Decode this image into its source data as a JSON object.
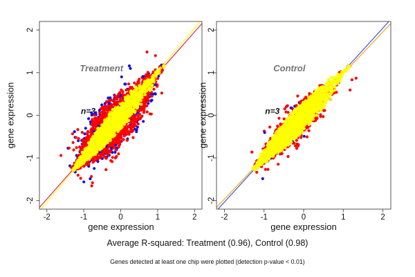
{
  "captions": {
    "r_squared": "Average R-squared: Treatment (0.96), Control (0.98)",
    "note": "Genes detected at least one chip were plotted (detection p-value < 0.01)"
  },
  "chart_data": {
    "type": "scatter",
    "layout": "1 row x 2 panels, shared axis style, no grid, boxed frame",
    "xlabel": "gene expression",
    "ylabel": "gene expression",
    "xlim": [
      -2.2,
      2.2
    ],
    "ylim": [
      -2.2,
      2.2
    ],
    "xticks": [
      "-2",
      "-1",
      "0",
      "1",
      "2"
    ],
    "yticks": [
      "-2",
      "-1",
      "0",
      "1",
      "2"
    ],
    "grid": false,
    "frame_color": "#555555",
    "tick_label_color": "#111111",
    "point_radius_px": 2.1,
    "point_colors": {
      "replicate_pair_1": "#1414e0",
      "replicate_pair_2": "#ff0000",
      "replicate_pair_3": "#ffff00"
    },
    "panels": [
      {
        "title": "Treatment",
        "title_color": "#757575",
        "title_pos": [
          -0.52,
          1.03
        ],
        "annotation": "n=3",
        "annotation_color": "#111111",
        "annotation_pos": [
          -0.88,
          0.03
        ],
        "r_squared": 0.96,
        "data_diagonal_range": [
          -1.3,
          1.18
        ],
        "identity_lines": [
          {
            "color": "#d6216e",
            "slope": 0.98,
            "intercept": -0.005
          },
          {
            "color": "#ffff00",
            "slope": 1.02,
            "intercept": 0.005
          }
        ],
        "cloud_model": {
          "seed": 42,
          "center_m": -0.35,
          "sd_m": 0.55,
          "m_range": [
            -1.28,
            1.17
          ],
          "tips": [
            -1.33,
            1.21
          ],
          "layers": [
            {
              "color": "#1414e0",
              "n": 480,
              "half_width": 0.6,
              "spread": "lens"
            },
            {
              "color": "#ff0000",
              "n": 2100,
              "half_width": 0.52,
              "spread": "lens"
            },
            {
              "color": "#1414e0",
              "n": 55,
              "half_width": 0.66,
              "spread": "uniform"
            },
            {
              "color": "#ff0000",
              "n": 85,
              "half_width": 0.62,
              "spread": "uniform"
            },
            {
              "color": "#ffff00",
              "n": 1900,
              "half_width": 0.26,
              "spread": "lens"
            }
          ]
        }
      },
      {
        "title": "Control",
        "title_color": "#757575",
        "title_pos": [
          -0.36,
          1.03
        ],
        "annotation": "n=3",
        "annotation_color": "#111111",
        "annotation_pos": [
          -0.79,
          0.03
        ],
        "r_squared": 0.98,
        "data_diagonal_range": [
          -1.28,
          1.16
        ],
        "identity_lines": [
          {
            "color": "#ff9f1a",
            "slope": 0.98,
            "intercept": -0.005
          },
          {
            "color": "#3a53d9",
            "slope": 1.02,
            "intercept": 0.005
          }
        ],
        "cloud_model": {
          "seed": 77,
          "center_m": -0.35,
          "sd_m": 0.55,
          "m_range": [
            -1.26,
            1.15
          ],
          "tips": [
            -1.31,
            1.19
          ],
          "layers": [
            {
              "color": "#1414e0",
              "n": 70,
              "half_width": 0.36,
              "spread": "lens"
            },
            {
              "color": "#ff0000",
              "n": 900,
              "half_width": 0.34,
              "spread": "lens"
            },
            {
              "color": "#ff0000",
              "n": 70,
              "half_width": 0.46,
              "spread": "uniform"
            },
            {
              "color": "#1414e0",
              "n": 8,
              "half_width": 0.42,
              "spread": "uniform"
            },
            {
              "color": "#ffff00",
              "n": 2200,
              "half_width": 0.27,
              "spread": "lens"
            }
          ]
        }
      }
    ]
  }
}
